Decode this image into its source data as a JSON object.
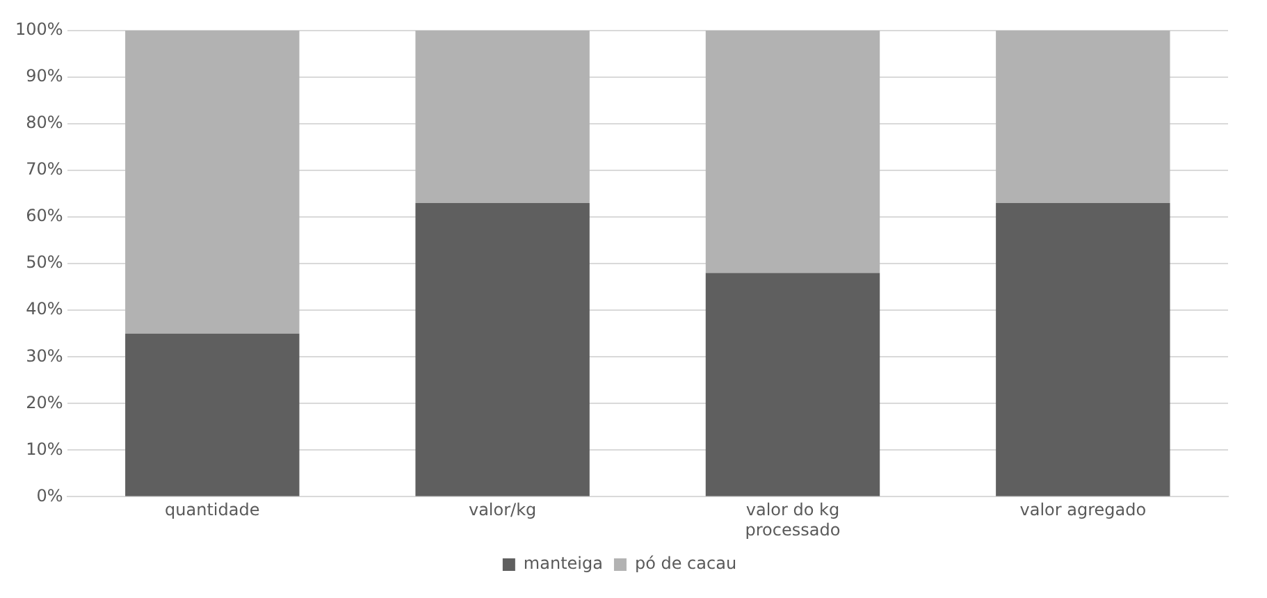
{
  "chart_data": {
    "type": "bar",
    "stacked": true,
    "categories": [
      "quantidade",
      "valor/kg",
      "valor do kg processado",
      "valor agregado"
    ],
    "series": [
      {
        "name": "manteiga",
        "color": "#5f5f5f",
        "values": [
          35,
          63,
          48,
          63
        ]
      },
      {
        "name": "pó de cacau",
        "color": "#b2b2b2",
        "values": [
          65,
          37,
          52,
          37
        ]
      }
    ],
    "ylim": [
      0,
      100
    ],
    "yticks": [
      {
        "value": 0,
        "label": "0%"
      },
      {
        "value": 10,
        "label": "10%"
      },
      {
        "value": 20,
        "label": "20%"
      },
      {
        "value": 30,
        "label": "30%"
      },
      {
        "value": 40,
        "label": "40%"
      },
      {
        "value": 50,
        "label": "50%"
      },
      {
        "value": 60,
        "label": "60%"
      },
      {
        "value": 70,
        "label": "70%"
      },
      {
        "value": 80,
        "label": "80%"
      },
      {
        "value": 90,
        "label": "90%"
      },
      {
        "value": 100,
        "label": "100%"
      }
    ],
    "grid": "y",
    "legend": "bottom"
  }
}
